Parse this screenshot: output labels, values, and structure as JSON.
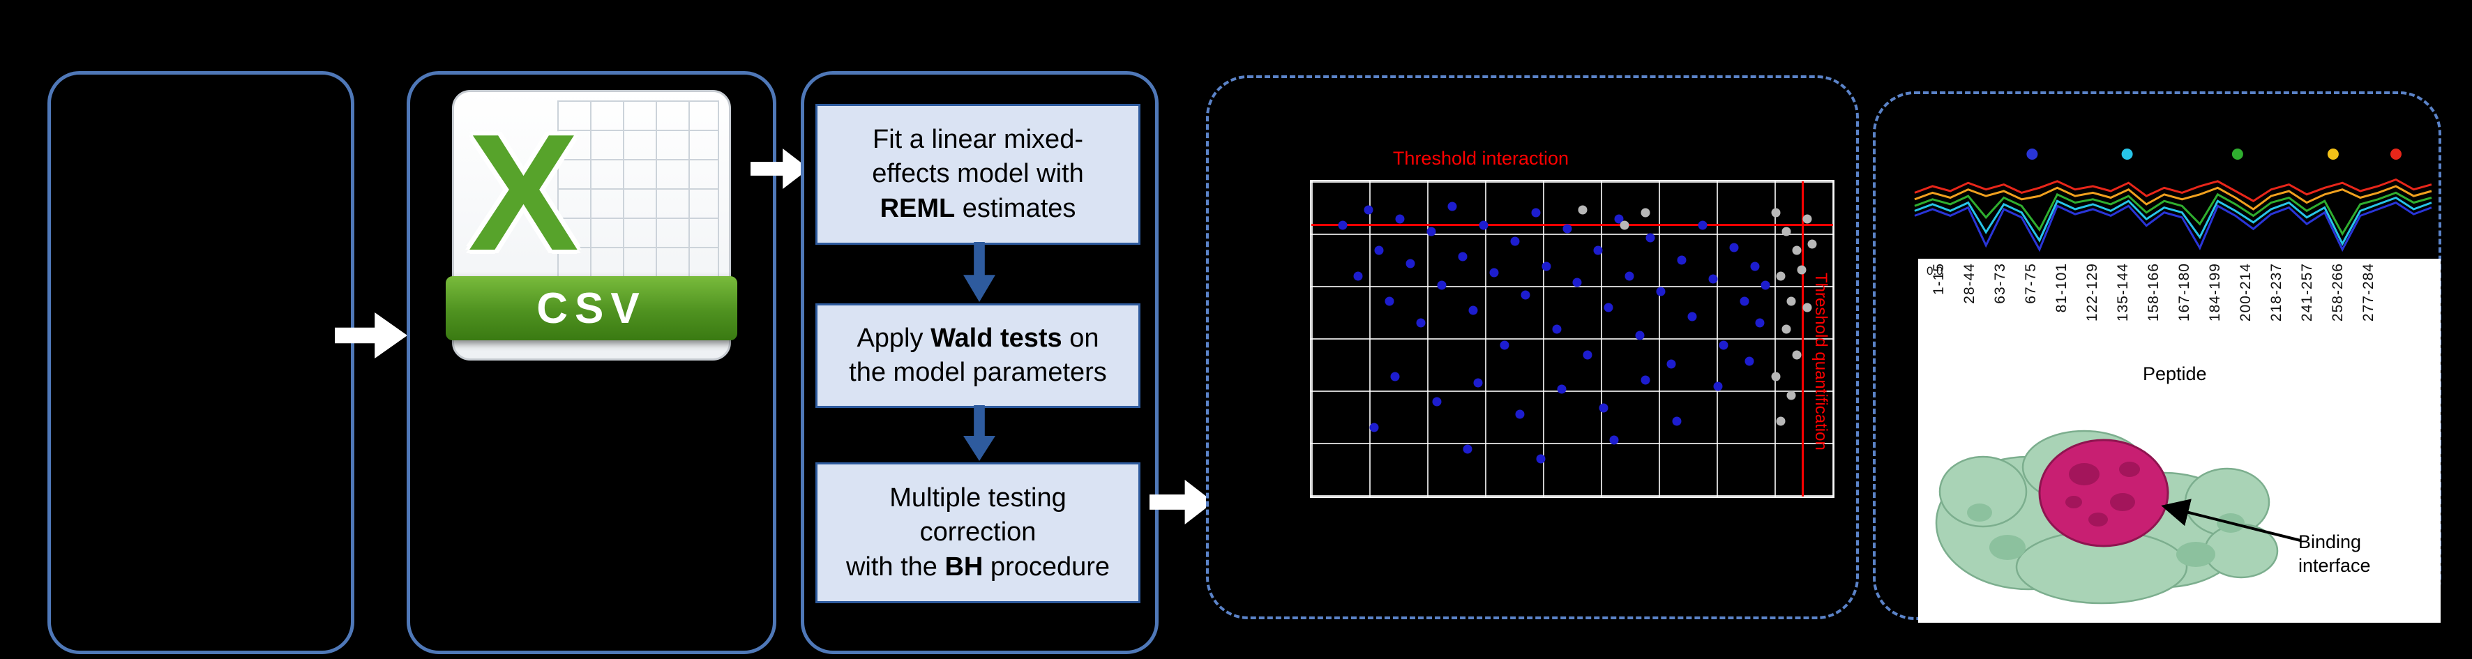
{
  "page": {
    "background": "#000000"
  },
  "colors": {
    "box_border": "#4f78b8",
    "dashed_border": "#5b83c8",
    "step_fill": "#dae3f3",
    "step_border": "#2e5b9e",
    "flow_arrow": "#ffffff",
    "step_arrow": "#2e5b9e",
    "threshold_red": "#ff0000",
    "point_blue": "#1d1dcf",
    "point_gray": "#b8b8b8",
    "csv_green": "#57a32b",
    "protein_green": "#a9d3b6",
    "protein_magenta": "#c81f72"
  },
  "icons": {
    "csv_file": "csv-file-icon",
    "flow_arrow": "right-arrow-icon",
    "step_arrow": "down-arrow-icon"
  },
  "csv_icon": {
    "letter": "X",
    "label": "CSV"
  },
  "steps": [
    {
      "line1": "Fit a linear mixed-",
      "line2": "effects model with",
      "bold": "REML",
      "line3_rest": " estimates"
    },
    {
      "line1_pre": "Apply ",
      "bold": "Wald tests",
      "line1_rest": " on",
      "line2": "the model parameters"
    },
    {
      "line1": "Multiple testing",
      "line2": "correction",
      "line3_pre": "with the ",
      "bold": "BH",
      "line3_rest": " procedure"
    }
  ],
  "volcano": {
    "title": "Threshold interaction",
    "side_label": "Threshold quantification",
    "hline_pct": 13.5,
    "vline_pct": 94,
    "blue_points": [
      [
        6,
        14
      ],
      [
        9,
        30
      ],
      [
        11,
        9
      ],
      [
        13,
        22
      ],
      [
        15,
        38
      ],
      [
        17,
        12
      ],
      [
        19,
        26
      ],
      [
        21,
        45
      ],
      [
        23,
        16
      ],
      [
        25,
        33
      ],
      [
        27,
        8
      ],
      [
        29,
        24
      ],
      [
        31,
        41
      ],
      [
        33,
        14
      ],
      [
        35,
        29
      ],
      [
        37,
        52
      ],
      [
        39,
        19
      ],
      [
        41,
        36
      ],
      [
        43,
        10
      ],
      [
        45,
        27
      ],
      [
        47,
        47
      ],
      [
        49,
        15
      ],
      [
        51,
        32
      ],
      [
        53,
        55
      ],
      [
        55,
        22
      ],
      [
        57,
        40
      ],
      [
        59,
        12
      ],
      [
        61,
        30
      ],
      [
        63,
        49
      ],
      [
        65,
        18
      ],
      [
        67,
        35
      ],
      [
        69,
        58
      ],
      [
        71,
        25
      ],
      [
        73,
        43
      ],
      [
        75,
        14
      ],
      [
        77,
        31
      ],
      [
        79,
        52
      ],
      [
        81,
        21
      ],
      [
        83,
        38
      ],
      [
        85,
        27
      ],
      [
        16,
        62
      ],
      [
        24,
        70
      ],
      [
        32,
        64
      ],
      [
        40,
        74
      ],
      [
        48,
        66
      ],
      [
        56,
        72
      ],
      [
        64,
        63
      ],
      [
        30,
        85
      ],
      [
        44,
        88
      ],
      [
        58,
        82
      ],
      [
        12,
        78
      ],
      [
        70,
        76
      ],
      [
        78,
        65
      ],
      [
        86,
        45
      ],
      [
        87,
        33
      ],
      [
        84,
        57
      ]
    ],
    "gray_points": [
      [
        89,
        10
      ],
      [
        91,
        16
      ],
      [
        93,
        22
      ],
      [
        95,
        12
      ],
      [
        90,
        30
      ],
      [
        92,
        38
      ],
      [
        94,
        28
      ],
      [
        91,
        47
      ],
      [
        93,
        55
      ],
      [
        89,
        62
      ],
      [
        95,
        40
      ],
      [
        92,
        68
      ],
      [
        96,
        20
      ],
      [
        90,
        76
      ],
      [
        64,
        10
      ],
      [
        60,
        14
      ],
      [
        52,
        9
      ]
    ]
  },
  "uptake": {
    "legend": [
      {
        "color": "#2935d8",
        "x": 0.233
      },
      {
        "color": "#27c4e8",
        "x": 0.413
      },
      {
        "color": "#2fae2f",
        "x": 0.622
      },
      {
        "color": "#f2c018",
        "x": 0.803
      },
      {
        "color": "#e8261a",
        "x": 0.922
      }
    ],
    "series": [
      {
        "name": "blue",
        "color": "#2935d8",
        "values": [
          0.58,
          0.5,
          0.58,
          0.48,
          0.94,
          0.5,
          0.6,
          0.99,
          0.46,
          0.56,
          0.5,
          0.58,
          0.46,
          0.7,
          0.54,
          0.6,
          0.97,
          0.46,
          0.58,
          0.74,
          0.56,
          0.48,
          0.68,
          0.54,
          0.99,
          0.58,
          0.5,
          0.42,
          0.56,
          0.48
        ]
      },
      {
        "name": "cyan",
        "color": "#27c4e8",
        "values": [
          0.52,
          0.44,
          0.52,
          0.42,
          0.78,
          0.44,
          0.54,
          0.88,
          0.4,
          0.5,
          0.44,
          0.52,
          0.4,
          0.62,
          0.48,
          0.54,
          0.84,
          0.4,
          0.52,
          0.66,
          0.5,
          0.42,
          0.6,
          0.48,
          0.92,
          0.52,
          0.44,
          0.36,
          0.5,
          0.42
        ]
      },
      {
        "name": "green",
        "color": "#2fae2f",
        "values": [
          0.46,
          0.38,
          0.44,
          0.34,
          0.6,
          0.36,
          0.46,
          0.75,
          0.32,
          0.42,
          0.38,
          0.44,
          0.34,
          0.54,
          0.4,
          0.46,
          0.68,
          0.32,
          0.44,
          0.58,
          0.42,
          0.36,
          0.52,
          0.4,
          0.8,
          0.44,
          0.38,
          0.3,
          0.42,
          0.36
        ]
      },
      {
        "name": "orange",
        "color": "#f0a01e",
        "values": [
          0.38,
          0.3,
          0.36,
          0.26,
          0.34,
          0.28,
          0.38,
          0.34,
          0.24,
          0.34,
          0.3,
          0.36,
          0.26,
          0.44,
          0.32,
          0.38,
          0.32,
          0.24,
          0.36,
          0.5,
          0.34,
          0.28,
          0.42,
          0.32,
          0.26,
          0.36,
          0.3,
          0.22,
          0.34,
          0.28
        ]
      },
      {
        "name": "red",
        "color": "#e8261a",
        "values": [
          0.3,
          0.22,
          0.28,
          0.18,
          0.26,
          0.2,
          0.3,
          0.24,
          0.16,
          0.26,
          0.22,
          0.28,
          0.18,
          0.34,
          0.24,
          0.3,
          0.22,
          0.16,
          0.28,
          0.4,
          0.26,
          0.2,
          0.32,
          0.24,
          0.18,
          0.28,
          0.22,
          0.14,
          0.26,
          0.2
        ]
      }
    ],
    "ytick": "0.0",
    "peptides": [
      "1-15",
      "28-44",
      "63-73",
      "67-75",
      "81-101",
      "122-129",
      "135-144",
      "158-166",
      "167-180",
      "184-199",
      "200-214",
      "218-237",
      "241-257",
      "258-266",
      "277-284"
    ],
    "xlabel": "Peptide",
    "annotation": "Binding interface"
  }
}
